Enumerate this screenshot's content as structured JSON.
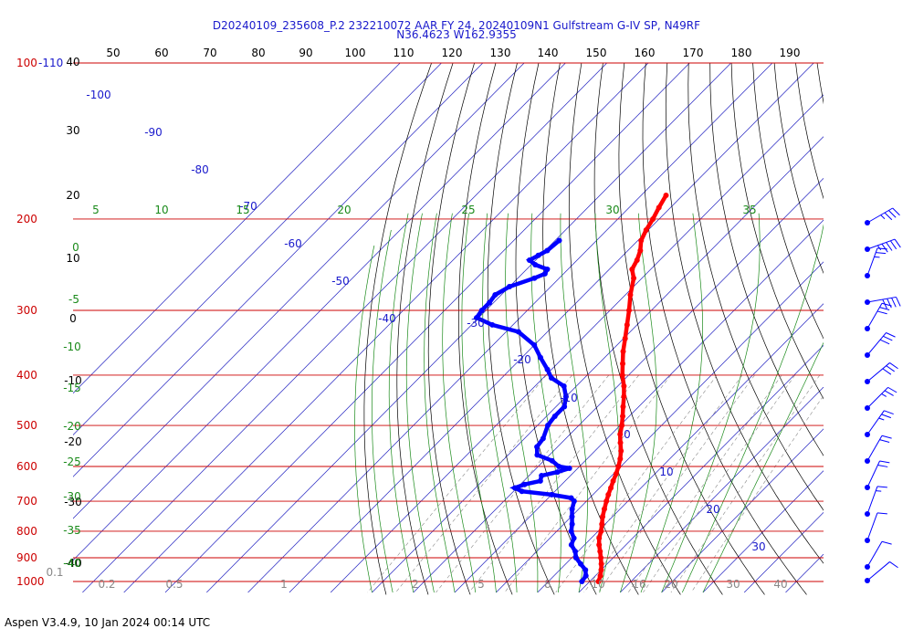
{
  "title_line1": "D20240109_235608_P.2 232210072 AAR FY 24, 20240109N1 Gulfstream G-IV SP, N49RF",
  "title_line2": "N36.4623 W162.9355",
  "footer": "Aspen V3.4.9, 10 Jan 2024  00:14 UTC",
  "chart_data": {
    "type": "skew-t",
    "pressure_labels": [
      {
        "p": 100,
        "text": "100"
      },
      {
        "p": 200,
        "text": "200"
      },
      {
        "p": 300,
        "text": "300"
      },
      {
        "p": 400,
        "text": "400"
      },
      {
        "p": 500,
        "text": "500"
      },
      {
        "p": 600,
        "text": "600"
      },
      {
        "p": 700,
        "text": "700"
      },
      {
        "p": 800,
        "text": "800"
      },
      {
        "p": 900,
        "text": "900"
      },
      {
        "p": 1000,
        "text": "1000"
      }
    ],
    "top_temp_label": "-110",
    "top_axis_labels": [
      "50",
      "60",
      "70",
      "80",
      "90",
      "100",
      "110",
      "120",
      "130",
      "140",
      "150",
      "160",
      "170",
      "180",
      "190"
    ],
    "left_axis_labels": [
      "40",
      "30",
      "20",
      "10",
      "0",
      "-10",
      "-20",
      "-30",
      "-40"
    ],
    "mixing_ratio_labels": [
      "0.1",
      "0.2",
      "0.5",
      "1",
      "2",
      "5",
      "8",
      "10",
      "16",
      "20",
      "30",
      "40"
    ],
    "temp_labels": [
      "-100",
      "-90",
      "-80",
      "-70",
      "-60",
      "-50",
      "-40",
      "-30",
      "-20",
      "-10",
      "0",
      "10",
      "20",
      "30"
    ],
    "theta_e_labels": [
      "5",
      "10",
      "15",
      "20",
      "25",
      "30",
      "35",
      "0",
      "-5",
      "-10",
      "-15",
      "-20",
      "-25",
      "-30",
      "-35",
      "-40"
    ],
    "temperature_profile": [
      [
        1000,
        12.1
      ],
      [
        975,
        11.2
      ],
      [
        950,
        10.0
      ],
      [
        925,
        8.6
      ],
      [
        900,
        7.0
      ],
      [
        875,
        5.3
      ],
      [
        850,
        3.5
      ],
      [
        825,
        1.9
      ],
      [
        800,
        0.7
      ],
      [
        775,
        -0.8
      ],
      [
        750,
        -2.4
      ],
      [
        725,
        -3.8
      ],
      [
        700,
        -5.2
      ],
      [
        680,
        -6.3
      ],
      [
        660,
        -7.3
      ],
      [
        640,
        -8.4
      ],
      [
        620,
        -9.4
      ],
      [
        600,
        -10.6
      ],
      [
        580,
        -12.0
      ],
      [
        560,
        -13.7
      ],
      [
        540,
        -15.8
      ],
      [
        520,
        -17.9
      ],
      [
        500,
        -19.6
      ],
      [
        480,
        -21.6
      ],
      [
        460,
        -23.8
      ],
      [
        440,
        -26.0
      ],
      [
        420,
        -28.5
      ],
      [
        400,
        -31.5
      ],
      [
        380,
        -34.2
      ],
      [
        360,
        -37.0
      ],
      [
        340,
        -39.6
      ],
      [
        320,
        -42.4
      ],
      [
        300,
        -45.4
      ],
      [
        280,
        -48.8
      ],
      [
        260,
        -52.0
      ],
      [
        250,
        -54.5
      ],
      [
        240,
        -55.5
      ],
      [
        230,
        -57.0
      ],
      [
        220,
        -59.2
      ],
      [
        210,
        -60.5
      ],
      [
        200,
        -61.5
      ],
      [
        190,
        -62.8
      ],
      [
        180,
        -64.0
      ]
    ],
    "dewpoint_profile": [
      [
        1000,
        8.1
      ],
      [
        975,
        7.7
      ],
      [
        950,
        6.2
      ],
      [
        925,
        3.6
      ],
      [
        900,
        1.0
      ],
      [
        875,
        -0.7
      ],
      [
        850,
        -3.2
      ],
      [
        825,
        -4.2
      ],
      [
        800,
        -6.5
      ],
      [
        775,
        -8.0
      ],
      [
        750,
        -9.8
      ],
      [
        725,
        -11.6
      ],
      [
        700,
        -13.0
      ],
      [
        690,
        -14.5
      ],
      [
        680,
        -20.0
      ],
      [
        670,
        -28.0
      ],
      [
        660,
        -30.5
      ],
      [
        650,
        -29.0
      ],
      [
        640,
        -26.0
      ],
      [
        625,
        -27.0
      ],
      [
        615,
        -24.0
      ],
      [
        605,
        -22.0
      ],
      [
        600,
        -25.0
      ],
      [
        585,
        -28.0
      ],
      [
        570,
        -33.0
      ],
      [
        550,
        -35.0
      ],
      [
        530,
        -35.5
      ],
      [
        500,
        -37.5
      ],
      [
        480,
        -38.0
      ],
      [
        460,
        -38.0
      ],
      [
        440,
        -40.0
      ],
      [
        420,
        -43.0
      ],
      [
        405,
        -48.0
      ],
      [
        390,
        -51.0
      ],
      [
        370,
        -55.5
      ],
      [
        350,
        -60.0
      ],
      [
        330,
        -67.0
      ],
      [
        320,
        -75.0
      ],
      [
        310,
        -80.5
      ],
      [
        300,
        -81.0
      ],
      [
        290,
        -81.0
      ],
      [
        280,
        -81.5
      ],
      [
        270,
        -80.0
      ],
      [
        260,
        -76.0
      ],
      [
        255,
        -74.5
      ],
      [
        250,
        -75.0
      ],
      [
        245,
        -79.0
      ],
      [
        240,
        -81.5
      ],
      [
        235,
        -80.5
      ],
      [
        230,
        -79.5
      ],
      [
        220,
        -79.0
      ]
    ],
    "wind_barb_pressures": [
      200,
      220,
      250,
      270,
      300,
      325,
      350,
      375,
      400,
      450,
      500,
      550,
      600,
      700,
      800,
      850,
      925,
      1000
    ]
  }
}
